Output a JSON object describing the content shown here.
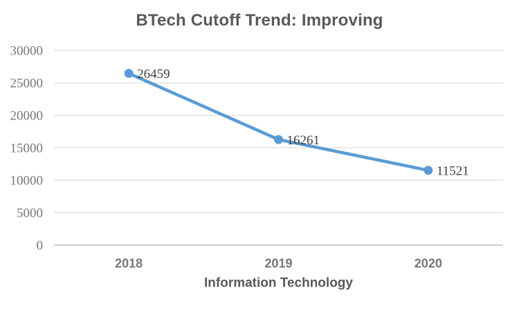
{
  "chart_data": {
    "type": "line",
    "title": "BTech Cutoff Trend: Improving",
    "xlabel": "Information Technology",
    "ylabel": "",
    "categories": [
      "2018",
      "2019",
      "2020"
    ],
    "series": [
      {
        "name": "Information Technology",
        "values": [
          26459,
          16261,
          11521
        ]
      }
    ],
    "data_labels": [
      "26459",
      "16261",
      "11521"
    ],
    "ylim": [
      0,
      30000
    ],
    "yticks": [
      0,
      5000,
      10000,
      15000,
      20000,
      25000,
      30000
    ],
    "grid": true,
    "legend": "none",
    "colors": {
      "series": "#5B9BD5",
      "gridline": "#D9D9D9",
      "axis_line": "#BFBFBF",
      "title_text": "#595959",
      "tick_text": "#767676",
      "data_label_text": "#404040"
    }
  }
}
